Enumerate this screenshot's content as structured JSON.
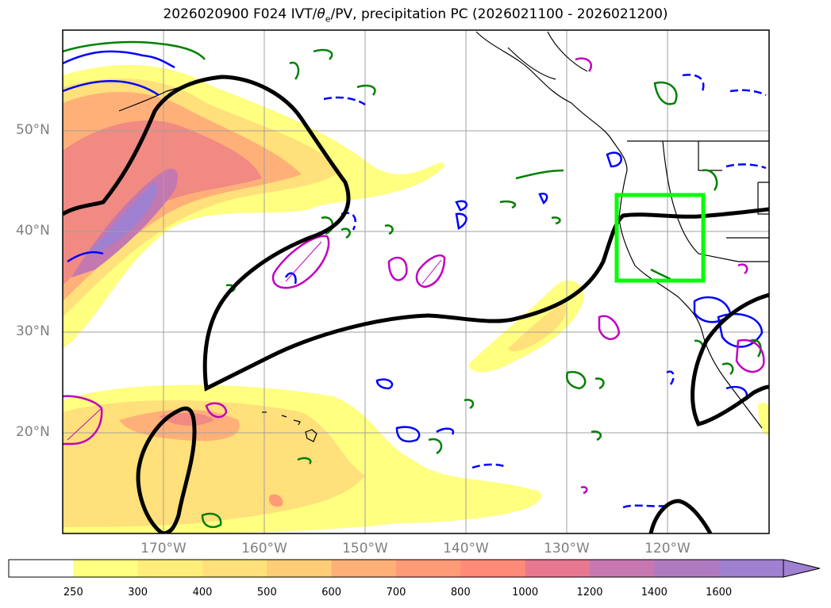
{
  "title": {
    "prefix": "2026020900 F024 IVT/",
    "theta": "θ",
    "theta_sub": "e",
    "suffix": "/PV, precipitation PC (2026021100 - 2026021200)"
  },
  "map": {
    "extent": {
      "lon_min": -180,
      "lon_max": -110,
      "lat_min": 10,
      "lat_max": 60
    },
    "gridlines": {
      "lons": [
        -170,
        -160,
        -150,
        -140,
        -130,
        -120
      ],
      "lats": [
        20,
        30,
        40,
        50
      ]
    },
    "lat_labels": [
      "50°N",
      "40°N",
      "30°N",
      "20°N"
    ],
    "lon_labels": [
      "170°W",
      "160°W",
      "150°W",
      "140°W",
      "130°W",
      "120°W"
    ],
    "highlight_box": {
      "lon_min": -125,
      "lon_max": -116,
      "lat_min": 35,
      "lat_max": 43.5,
      "color": "#00ff00"
    },
    "contour_colors": {
      "pv": "#000000",
      "theta_e_positive": "#0000ff",
      "precip": "#008000",
      "anomaly": "#c000c0"
    }
  },
  "colorbar": {
    "levels": [
      "250",
      "300",
      "400",
      "500",
      "600",
      "700",
      "800",
      "1000",
      "1200",
      "1400",
      "1600"
    ],
    "colors": [
      "#ffffff",
      "#ffff80",
      "#ffee7a",
      "#ffe07a",
      "#ffcc78",
      "#ffb078",
      "#ff9a76",
      "#ff8a78",
      "#e87890",
      "#c878b0",
      "#b07ac0",
      "#a080d0"
    ]
  }
}
